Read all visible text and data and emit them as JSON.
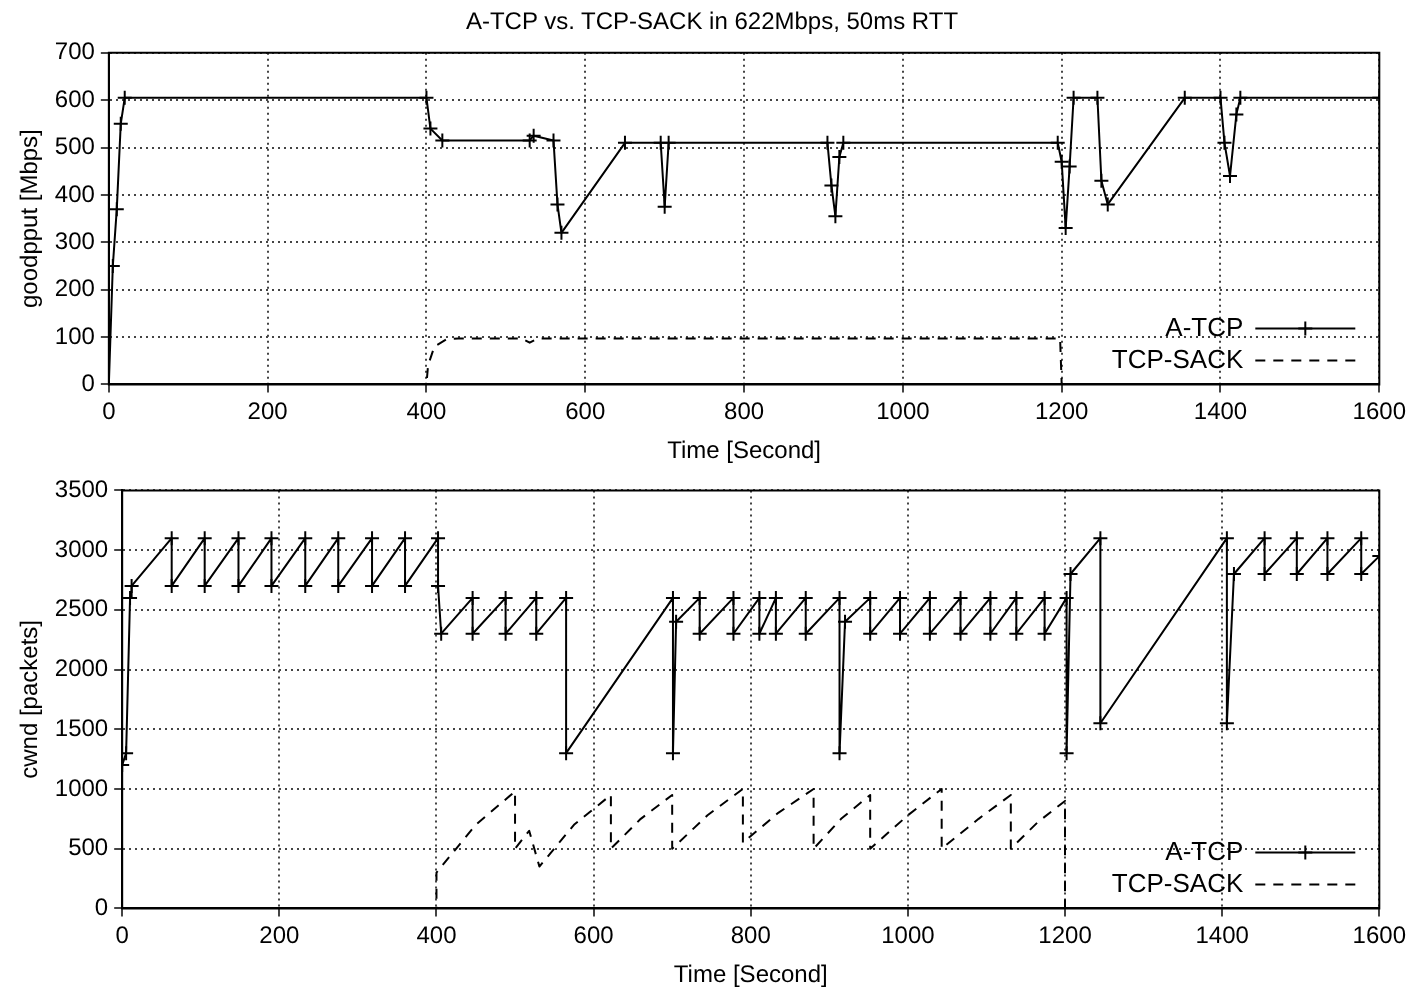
{
  "chart_data": [
    {
      "type": "line",
      "title": "A-TCP vs. TCP-SACK in 622Mbps, 50ms RTT",
      "xlabel": "Time [Second]",
      "ylabel": "goodpput [Mbps]",
      "xlim": [
        0,
        1600
      ],
      "xticks": [
        0,
        200,
        400,
        600,
        800,
        1000,
        1200,
        1400,
        1600
      ],
      "ylim": [
        0,
        700
      ],
      "yticks": [
        0,
        100,
        200,
        300,
        400,
        500,
        600,
        700
      ],
      "grid": true,
      "legend": "bottom right",
      "series": [
        {
          "name": "A-TCP",
          "color": "#000000",
          "marker": "cross",
          "line_style": "solid",
          "x": [
            0,
            5,
            10,
            15,
            20,
            400,
            405,
            420,
            530,
            535,
            560,
            565,
            570,
            650,
            695,
            700,
            705,
            905,
            910,
            915,
            920,
            925,
            1195,
            1200,
            1205,
            1210,
            1215,
            1245,
            1250,
            1258,
            1355,
            1400,
            1405,
            1412,
            1420,
            1425,
            1600
          ],
          "values": [
            0,
            250,
            370,
            550,
            605,
            605,
            540,
            515,
            515,
            525,
            515,
            380,
            320,
            510,
            510,
            375,
            510,
            510,
            420,
            355,
            480,
            510,
            510,
            470,
            330,
            460,
            605,
            605,
            430,
            380,
            605,
            605,
            510,
            440,
            570,
            605,
            605
          ]
        },
        {
          "name": "TCP-SACK",
          "color": "#000000",
          "marker": "none",
          "line_style": "dashed",
          "x": [
            0,
            400,
            402,
            410,
            425,
            440,
            520,
            530,
            540,
            1198,
            1200,
            1600
          ],
          "values": [
            0,
            0,
            40,
            80,
            95,
            97,
            97,
            88,
            97,
            97,
            0,
            0
          ]
        }
      ]
    },
    {
      "type": "line",
      "xlabel": "Time [Second]",
      "ylabel": "cwnd [packets]",
      "xlim": [
        0,
        1600
      ],
      "xticks": [
        0,
        200,
        400,
        600,
        800,
        1000,
        1200,
        1400,
        1600
      ],
      "ylim": [
        0,
        3500
      ],
      "yticks": [
        0,
        500,
        1000,
        1500,
        2000,
        2500,
        3000,
        3500
      ],
      "grid": true,
      "legend": "bottom right",
      "series": [
        {
          "name": "A-TCP",
          "color": "#000000",
          "marker": "cross",
          "line_style": "solid",
          "x": [
            0,
            5,
            10,
            12,
            63,
            63,
            105,
            105,
            148,
            148,
            190,
            190,
            233,
            233,
            275,
            275,
            318,
            318,
            360,
            360,
            402,
            402,
            406,
            446,
            446,
            488,
            488,
            527,
            527,
            565,
            565,
            701,
            701,
            705,
            735,
            735,
            778,
            778,
            811,
            811,
            832,
            832,
            870,
            870,
            913,
            913,
            920,
            952,
            952,
            990,
            990,
            1028,
            1028,
            1067,
            1067,
            1105,
            1105,
            1138,
            1138,
            1174,
            1174,
            1202,
            1202,
            1207,
            1245,
            1245,
            1406,
            1406,
            1415,
            1454,
            1454,
            1495,
            1495,
            1534,
            1534,
            1577,
            1577,
            1600
          ],
          "values": [
            1200,
            1300,
            2600,
            2700,
            3100,
            2700,
            3100,
            2700,
            3100,
            2700,
            3100,
            2700,
            3100,
            2700,
            3100,
            2700,
            3100,
            2700,
            3100,
            2700,
            3100,
            2700,
            2300,
            2600,
            2300,
            2600,
            2300,
            2600,
            2300,
            2600,
            1300,
            2600,
            1300,
            2400,
            2600,
            2300,
            2600,
            2300,
            2600,
            2300,
            2600,
            2300,
            2600,
            2300,
            2600,
            1300,
            2400,
            2600,
            2300,
            2600,
            2300,
            2600,
            2300,
            2600,
            2300,
            2600,
            2300,
            2600,
            2300,
            2600,
            2300,
            2600,
            1300,
            2800,
            3100,
            1550,
            3100,
            1550,
            2800,
            3100,
            2800,
            3100,
            2800,
            3100,
            2800,
            3100,
            2800,
            2950
          ]
        },
        {
          "name": "TCP-SACK",
          "color": "#000000",
          "marker": "none",
          "line_style": "dashed",
          "x": [
            0,
            400,
            400,
            450,
            500,
            500,
            518,
            531,
            575,
            622,
            622,
            660,
            700,
            700,
            745,
            790,
            790,
            835,
            880,
            880,
            915,
            952,
            952,
            1000,
            1043,
            1043,
            1090,
            1131,
            1131,
            1165,
            1200,
            1200,
            1600
          ],
          "values": [
            0,
            0,
            300,
            700,
            980,
            500,
            650,
            350,
            700,
            950,
            500,
            750,
            950,
            500,
            780,
            1000,
            550,
            800,
            1000,
            500,
            750,
            950,
            500,
            780,
            1000,
            500,
            750,
            950,
            500,
            720,
            900,
            0,
            0
          ]
        }
      ]
    }
  ]
}
